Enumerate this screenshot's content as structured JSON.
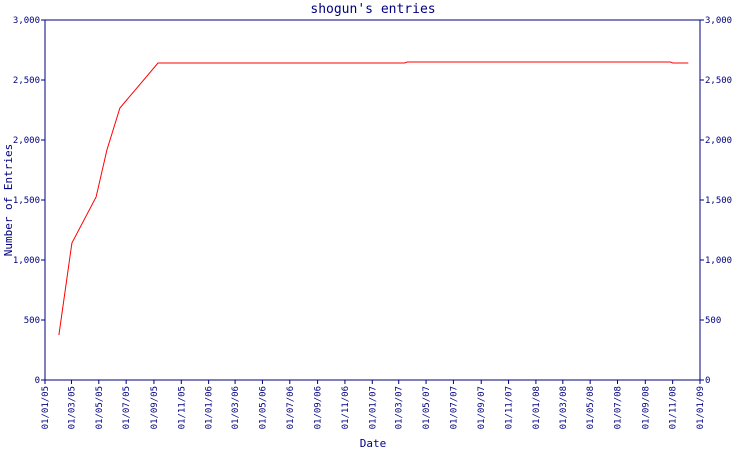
{
  "chart_data": {
    "type": "line",
    "title": "shogun's entries",
    "x_label": "Date",
    "y_label": "Number of Entries",
    "x": [
      "2005-02-01",
      "2005-03-02",
      "2005-04-25",
      "2005-05-19",
      "2005-06-17",
      "2005-09-10",
      "2007-03-14",
      "2007-03-20",
      "2008-10-27",
      "2008-11-01",
      "2008-12-06"
    ],
    "series": [
      {
        "name": "entries",
        "color": "#ff0000",
        "values": [
          375,
          1142,
          1525,
          1917,
          2267,
          2642,
          2642,
          2650,
          2650,
          2642,
          2642
        ]
      }
    ],
    "xlim": [
      "2005-01-01",
      "2009-01-01"
    ],
    "xticks": [
      {
        "value": "2005-01-01",
        "label": "01/01/05"
      },
      {
        "value": "2005-03-01",
        "label": "01/03/05"
      },
      {
        "value": "2005-05-01",
        "label": "01/05/05"
      },
      {
        "value": "2005-07-01",
        "label": "01/07/05"
      },
      {
        "value": "2005-09-01",
        "label": "01/09/05"
      },
      {
        "value": "2005-11-01",
        "label": "01/11/05"
      },
      {
        "value": "2006-01-01",
        "label": "01/01/06"
      },
      {
        "value": "2006-03-01",
        "label": "01/03/06"
      },
      {
        "value": "2006-05-01",
        "label": "01/05/06"
      },
      {
        "value": "2006-07-01",
        "label": "01/07/06"
      },
      {
        "value": "2006-09-01",
        "label": "01/09/06"
      },
      {
        "value": "2006-11-01",
        "label": "01/11/06"
      },
      {
        "value": "2007-01-01",
        "label": "01/01/07"
      },
      {
        "value": "2007-03-01",
        "label": "01/03/07"
      },
      {
        "value": "2007-05-01",
        "label": "01/05/07"
      },
      {
        "value": "2007-07-01",
        "label": "01/07/07"
      },
      {
        "value": "2007-09-01",
        "label": "01/09/07"
      },
      {
        "value": "2007-11-01",
        "label": "01/11/07"
      },
      {
        "value": "2008-01-01",
        "label": "01/01/08"
      },
      {
        "value": "2008-03-01",
        "label": "01/03/08"
      },
      {
        "value": "2008-05-01",
        "label": "01/05/08"
      },
      {
        "value": "2008-07-01",
        "label": "01/07/08"
      },
      {
        "value": "2008-09-01",
        "label": "01/09/08"
      },
      {
        "value": "2008-11-01",
        "label": "01/11/08"
      },
      {
        "value": "2009-01-01",
        "label": "01/01/09"
      }
    ],
    "ylim": [
      0,
      3000
    ],
    "yticks": [
      0,
      500,
      {
        "value": 1000,
        "label": "1,000"
      },
      {
        "value": 1500,
        "label": "1,500"
      },
      {
        "value": 2000,
        "label": "2,000"
      },
      {
        "value": 2500,
        "label": "2,500"
      },
      {
        "value": 3000,
        "label": "3,000"
      }
    ],
    "axis_color": "#000080"
  }
}
